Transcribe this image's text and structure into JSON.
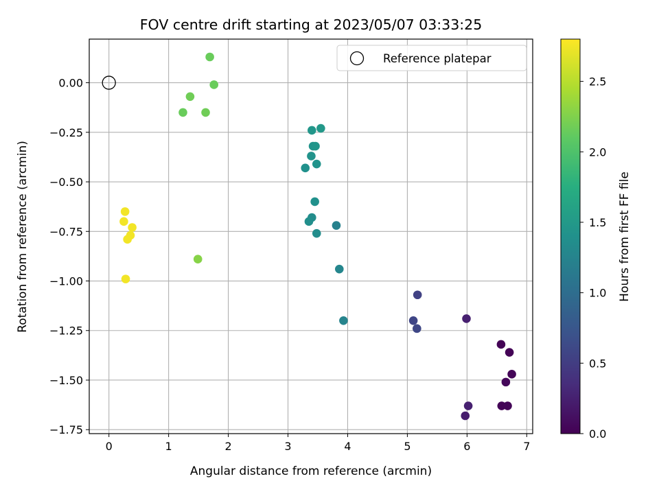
{
  "chart_data": {
    "type": "scatter",
    "title": "FOV centre drift starting at 2023/05/07 03:33:25",
    "xlabel": "Angular distance from reference (arcmin)",
    "ylabel": "Rotation from reference (arcmin)",
    "xlim": [
      -0.33,
      7.1
    ],
    "ylim": [
      -1.77,
      0.22
    ],
    "xticks": [
      0,
      1,
      2,
      3,
      4,
      5,
      6,
      7
    ],
    "yticks": [
      0.0,
      -0.25,
      -0.5,
      -0.75,
      -1.0,
      -1.25,
      -1.5,
      -1.75
    ],
    "xtick_labels": [
      "0",
      "1",
      "2",
      "3",
      "4",
      "5",
      "6",
      "7"
    ],
    "ytick_labels": [
      "0.00",
      "−0.25",
      "−0.50",
      "−0.75",
      "−1.00",
      "−1.25",
      "−1.50",
      "−1.75"
    ],
    "grid": true,
    "legend": {
      "position": "top-right",
      "entries": [
        "Reference platepar"
      ]
    },
    "reference_point": {
      "x": 0,
      "y": 0
    },
    "colorbar": {
      "label": "Hours from first FF file",
      "colormap": "viridis",
      "range": [
        0.0,
        2.8
      ],
      "ticks": [
        0.0,
        0.5,
        1.0,
        1.5,
        2.0,
        2.5
      ],
      "tick_labels": [
        "0.0",
        "0.5",
        "1.0",
        "1.5",
        "2.0",
        "2.5"
      ]
    },
    "points": [
      {
        "x": 6.57,
        "y": -1.32,
        "c": 0.02
      },
      {
        "x": 6.71,
        "y": -1.36,
        "c": 0.02
      },
      {
        "x": 6.75,
        "y": -1.47,
        "c": 0.03
      },
      {
        "x": 6.65,
        "y": -1.51,
        "c": 0.05
      },
      {
        "x": 6.58,
        "y": -1.63,
        "c": 0.03
      },
      {
        "x": 6.68,
        "y": -1.63,
        "c": 0.04
      },
      {
        "x": 5.99,
        "y": -1.19,
        "c": 0.25
      },
      {
        "x": 6.02,
        "y": -1.63,
        "c": 0.25
      },
      {
        "x": 5.97,
        "y": -1.68,
        "c": 0.22
      },
      {
        "x": 5.17,
        "y": -1.07,
        "c": 0.55
      },
      {
        "x": 5.1,
        "y": -1.2,
        "c": 0.58
      },
      {
        "x": 5.16,
        "y": -1.24,
        "c": 0.6
      },
      {
        "x": 3.93,
        "y": -1.2,
        "c": 1.25
      },
      {
        "x": 3.86,
        "y": -0.94,
        "c": 1.28
      },
      {
        "x": 3.81,
        "y": -0.72,
        "c": 1.22
      },
      {
        "x": 3.48,
        "y": -0.76,
        "c": 1.35
      },
      {
        "x": 3.4,
        "y": -0.68,
        "c": 1.35
      },
      {
        "x": 3.35,
        "y": -0.7,
        "c": 1.38
      },
      {
        "x": 3.45,
        "y": -0.6,
        "c": 1.4
      },
      {
        "x": 3.29,
        "y": -0.43,
        "c": 1.4
      },
      {
        "x": 3.48,
        "y": -0.41,
        "c": 1.42
      },
      {
        "x": 3.39,
        "y": -0.37,
        "c": 1.43
      },
      {
        "x": 3.42,
        "y": -0.32,
        "c": 1.44
      },
      {
        "x": 3.46,
        "y": -0.32,
        "c": 1.45
      },
      {
        "x": 3.4,
        "y": -0.24,
        "c": 1.46
      },
      {
        "x": 3.55,
        "y": -0.23,
        "c": 1.48
      },
      {
        "x": 1.69,
        "y": 0.13,
        "c": 2.15
      },
      {
        "x": 1.76,
        "y": -0.01,
        "c": 2.15
      },
      {
        "x": 1.36,
        "y": -0.07,
        "c": 2.18
      },
      {
        "x": 1.24,
        "y": -0.15,
        "c": 2.15
      },
      {
        "x": 1.62,
        "y": -0.15,
        "c": 2.18
      },
      {
        "x": 1.49,
        "y": -0.89,
        "c": 2.28
      },
      {
        "x": 0.27,
        "y": -0.65,
        "c": 2.75
      },
      {
        "x": 0.25,
        "y": -0.7,
        "c": 2.75
      },
      {
        "x": 0.39,
        "y": -0.73,
        "c": 2.75
      },
      {
        "x": 0.36,
        "y": -0.77,
        "c": 2.75
      },
      {
        "x": 0.31,
        "y": -0.79,
        "c": 2.75
      },
      {
        "x": 0.28,
        "y": -0.99,
        "c": 2.75
      }
    ]
  }
}
